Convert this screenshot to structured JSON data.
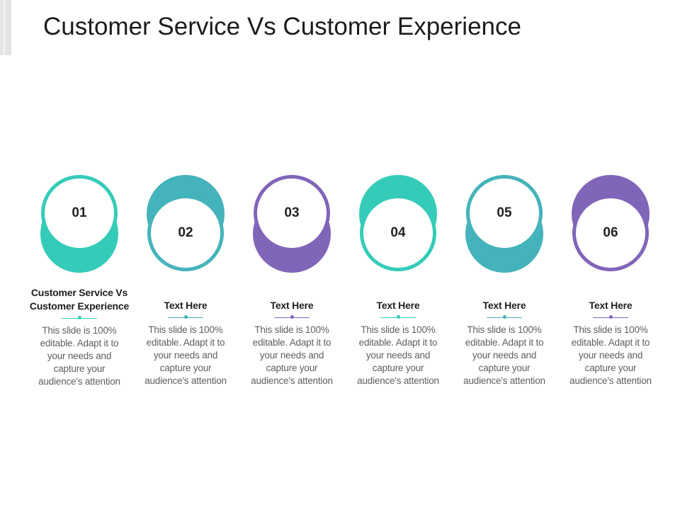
{
  "title": "Customer Service Vs Customer Experience",
  "colors": {
    "teal_light": "#34ccb9",
    "teal_dark": "#45b3bb",
    "purple": "#8165b9"
  },
  "steps": [
    {
      "number": "01",
      "heading_line1": "Customer Service Vs",
      "heading_line2": "Customer Experience",
      "body_line1": "This slide is 100%",
      "body_line2": "editable. Adapt it to",
      "body_line3": "your needs and",
      "body_line4": "capture your",
      "body_line5": "audience's attention",
      "color": "#34ccb9"
    },
    {
      "number": "02",
      "heading_line1": "Text Here",
      "heading_line2": "",
      "body_line1": "This slide is 100%",
      "body_line2": "editable. Adapt it to",
      "body_line3": "your needs and",
      "body_line4": "capture your",
      "body_line5": "audience's attention",
      "color": "#45b3bb"
    },
    {
      "number": "03",
      "heading_line1": "Text Here",
      "heading_line2": "",
      "body_line1": "This slide is 100%",
      "body_line2": "editable. Adapt it to",
      "body_line3": "your needs and",
      "body_line4": "capture your",
      "body_line5": "audience's attention",
      "color": "#8165b9"
    },
    {
      "number": "04",
      "heading_line1": "Text Here",
      "heading_line2": "",
      "body_line1": "This slide is 100%",
      "body_line2": "editable. Adapt it to",
      "body_line3": "your needs and",
      "body_line4": "capture your",
      "body_line5": "audience's attention",
      "color": "#34ccb9"
    },
    {
      "number": "05",
      "heading_line1": "Text Here",
      "heading_line2": "",
      "body_line1": "This slide is 100%",
      "body_line2": "editable. Adapt it to",
      "body_line3": "your needs and",
      "body_line4": "capture your",
      "body_line5": "audience's attention",
      "color": "#45b3bb"
    },
    {
      "number": "06",
      "heading_line1": "Text Here",
      "heading_line2": "",
      "body_line1": "This slide is 100%",
      "body_line2": "editable. Adapt it to",
      "body_line3": "your needs and",
      "body_line4": "capture your",
      "body_line5": "audience's attention",
      "color": "#8165b9"
    }
  ]
}
